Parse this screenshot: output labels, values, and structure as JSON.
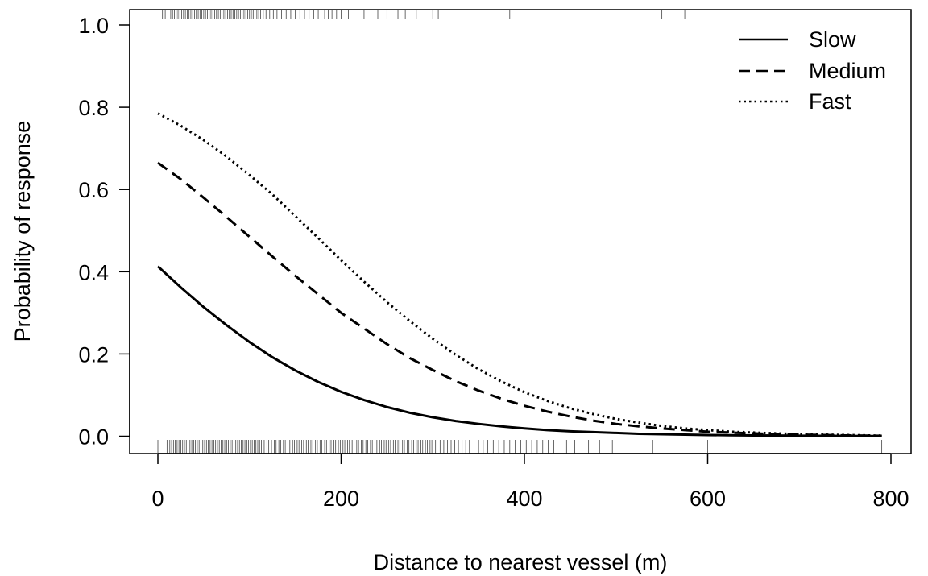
{
  "chart_data": {
    "type": "line",
    "title": "",
    "xlabel": "Distance to nearest vessel (m)",
    "ylabel": "Probability of response",
    "xlim": [
      -50,
      810
    ],
    "ylim": [
      -0.04,
      1.04
    ],
    "x_ticks": [
      0,
      200,
      400,
      600,
      800
    ],
    "x_tick_labels": [
      "0",
      "200",
      "400",
      "600",
      "800"
    ],
    "y_ticks": [
      0.0,
      0.2,
      0.4,
      0.6,
      0.8,
      1.0
    ],
    "y_tick_labels": [
      "0.0",
      "0.2",
      "0.4",
      "0.6",
      "0.8",
      "1.0"
    ],
    "grid": false,
    "legend_position": "top-right",
    "x": [
      0,
      25,
      50,
      75,
      100,
      125,
      150,
      175,
      200,
      225,
      250,
      275,
      300,
      325,
      350,
      375,
      400,
      425,
      450,
      475,
      500,
      525,
      550,
      575,
      600,
      625,
      650,
      675,
      700,
      725,
      750,
      775,
      790
    ],
    "series": [
      {
        "name": "Slow",
        "line_style": "solid",
        "values": [
          0.413,
          0.362,
          0.314,
          0.27,
          0.229,
          0.192,
          0.16,
          0.132,
          0.108,
          0.088,
          0.071,
          0.057,
          0.046,
          0.037,
          0.03,
          0.024,
          0.019,
          0.015,
          0.012,
          0.01,
          0.008,
          0.006,
          0.005,
          0.004,
          0.003,
          0.0025,
          0.002,
          0.0016,
          0.0012,
          0.001,
          0.0008,
          0.0006,
          0.0005
        ]
      },
      {
        "name": "Medium",
        "line_style": "dashed",
        "values": [
          0.665,
          0.625,
          0.58,
          0.533,
          0.485,
          0.437,
          0.39,
          0.345,
          0.3,
          0.262,
          0.224,
          0.19,
          0.161,
          0.134,
          0.111,
          0.091,
          0.074,
          0.06,
          0.048,
          0.038,
          0.03,
          0.024,
          0.019,
          0.015,
          0.011,
          0.009,
          0.007,
          0.005,
          0.004,
          0.003,
          0.002,
          0.0015,
          0.001
        ]
      },
      {
        "name": "Fast",
        "line_style": "dotted",
        "values": [
          0.785,
          0.755,
          0.72,
          0.68,
          0.635,
          0.588,
          0.535,
          0.482,
          0.428,
          0.376,
          0.326,
          0.28,
          0.237,
          0.198,
          0.163,
          0.133,
          0.107,
          0.086,
          0.068,
          0.054,
          0.042,
          0.033,
          0.025,
          0.019,
          0.015,
          0.011,
          0.009,
          0.007,
          0.005,
          0.004,
          0.003,
          0.002,
          0.0015
        ]
      }
    ],
    "rug_top": [
      5,
      8,
      11,
      14,
      16,
      18,
      20,
      22,
      24,
      26,
      28,
      30,
      32,
      34,
      36,
      38,
      40,
      42,
      44,
      46,
      48,
      50,
      52,
      54,
      56,
      58,
      60,
      62,
      64,
      66,
      68,
      70,
      72,
      74,
      76,
      78,
      80,
      82,
      84,
      86,
      88,
      90,
      92,
      94,
      96,
      98,
      100,
      102,
      104,
      106,
      108,
      110,
      112,
      115,
      118,
      122,
      126,
      130,
      135,
      140,
      145,
      150,
      155,
      160,
      165,
      170,
      175,
      178,
      182,
      186,
      190,
      195,
      200,
      208,
      225,
      240,
      250,
      262,
      270,
      282,
      300,
      306,
      384,
      550,
      575
    ],
    "rug_bottom": [
      0,
      10,
      13,
      15,
      17,
      19,
      21,
      23,
      25,
      27,
      29,
      31,
      33,
      35,
      37,
      39,
      41,
      43,
      45,
      47,
      49,
      51,
      53,
      55,
      57,
      59,
      61,
      63,
      65,
      67,
      69,
      71,
      73,
      75,
      77,
      79,
      81,
      83,
      85,
      87,
      89,
      91,
      93,
      95,
      97,
      99,
      101,
      103,
      105,
      107,
      109,
      111,
      113,
      116,
      119,
      121,
      124,
      127,
      129,
      132,
      134,
      137,
      139,
      142,
      144,
      147,
      149,
      152,
      154,
      157,
      159,
      162,
      164,
      167,
      169,
      172,
      174,
      177,
      179,
      182,
      184,
      187,
      189,
      192,
      194,
      197,
      199,
      202,
      204,
      207,
      209,
      212,
      214,
      217,
      219,
      222,
      224,
      227,
      229,
      232,
      234,
      237,
      239,
      242,
      244,
      247,
      249,
      252,
      254,
      257,
      259,
      262,
      264,
      267,
      269,
      272,
      274,
      277,
      279,
      282,
      284,
      287,
      289,
      292,
      294,
      297,
      299,
      303,
      308,
      312,
      316,
      320,
      324,
      328,
      332,
      336,
      340,
      345,
      350,
      355,
      360,
      366,
      372,
      378,
      384,
      390,
      396,
      402,
      408,
      414,
      420,
      426,
      432,
      440,
      446,
      455,
      470,
      482,
      496,
      540,
      600,
      790
    ]
  }
}
